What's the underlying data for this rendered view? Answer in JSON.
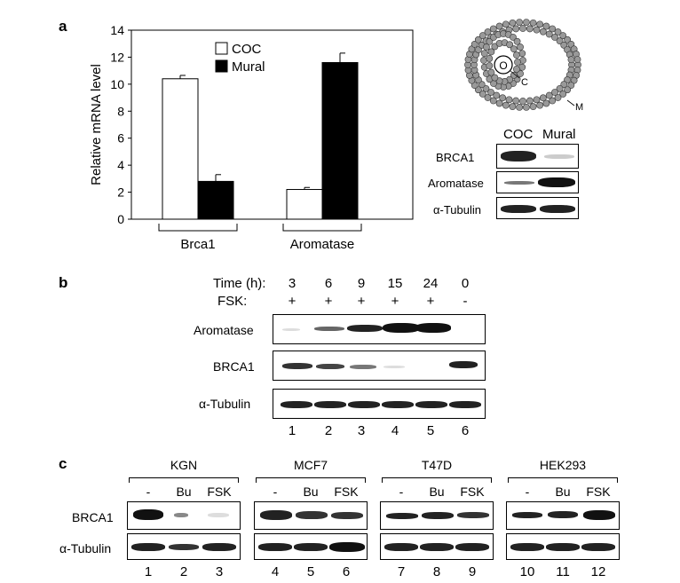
{
  "panels": {
    "a": "a",
    "b": "b",
    "c": "c"
  },
  "chart_data": {
    "type": "bar",
    "ylabel": "Relative mRNA level",
    "ylim": [
      0,
      14
    ],
    "yticks": [
      "0",
      "2",
      "4",
      "6",
      "8",
      "10",
      "12",
      "14"
    ],
    "categories": [
      "Brca1",
      "Aromatase"
    ],
    "series": [
      {
        "name": "COC",
        "values": [
          10.4,
          2.2
        ],
        "errors": [
          0.25,
          0.15
        ],
        "color": "#ffffff"
      },
      {
        "name": "Mural",
        "values": [
          2.8,
          11.6
        ],
        "errors": [
          0.5,
          0.7
        ],
        "color": "#000000"
      }
    ],
    "legend_position": "top-center"
  },
  "diagram": {
    "labels": [
      "O",
      "C",
      "M"
    ]
  },
  "blot_a": {
    "columns": [
      "COC",
      "Mural"
    ],
    "rows": [
      "BRCA1",
      "Aromatase",
      "α-Tubulin"
    ]
  },
  "blot_b": {
    "time_label": "Time (h):",
    "times": [
      "3",
      "6",
      "9",
      "15",
      "24",
      "0"
    ],
    "fsk_label": "FSK:",
    "fsk": [
      "+",
      "+",
      "+",
      "+",
      "+",
      "-"
    ],
    "rows": [
      "Aromatase",
      "BRCA1",
      "α-Tubulin"
    ],
    "lanes": [
      "1",
      "2",
      "3",
      "4",
      "5",
      "6"
    ]
  },
  "blot_c": {
    "cell_lines": [
      "KGN",
      "MCF7",
      "T47D",
      "HEK293"
    ],
    "treatments": [
      "-",
      "Bu",
      "FSK"
    ],
    "rows": [
      "BRCA1",
      "α-Tubulin"
    ],
    "lanes": [
      "1",
      "2",
      "3",
      "4",
      "5",
      "6",
      "7",
      "8",
      "9",
      "10",
      "11",
      "12"
    ]
  }
}
